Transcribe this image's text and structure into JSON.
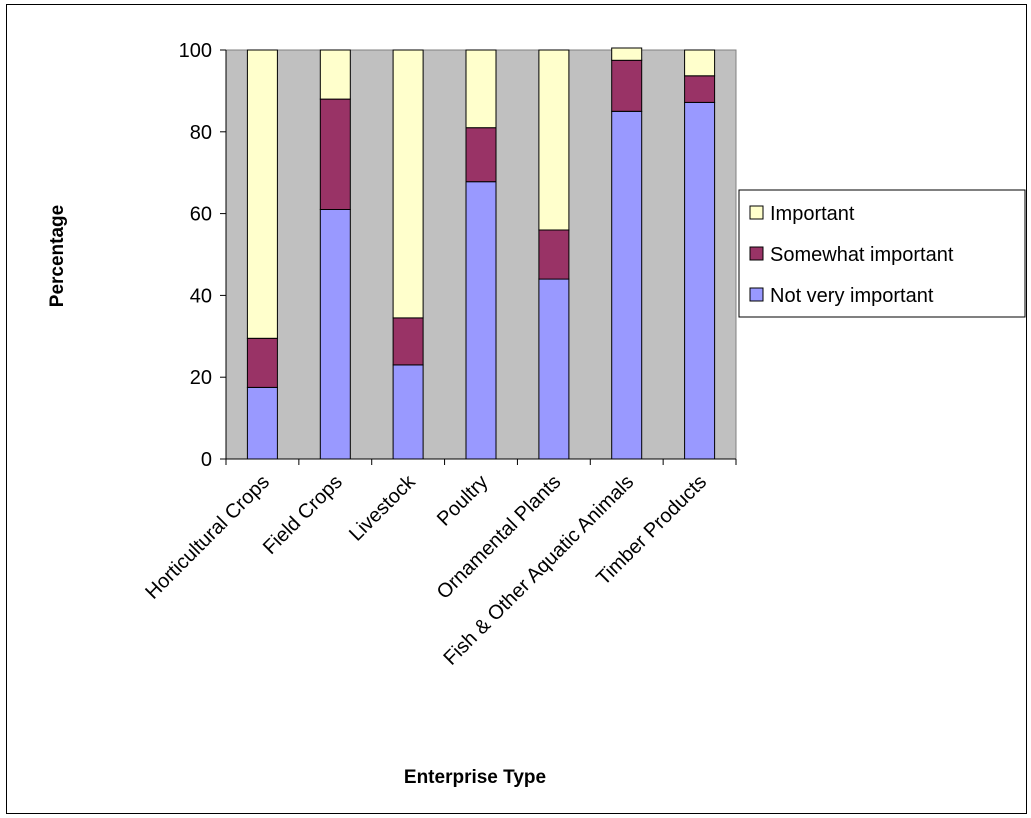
{
  "chart_data": {
    "type": "bar",
    "stacked": true,
    "categories": [
      "Horticultural Crops",
      "Field Crops",
      "Livestock",
      "Poultry",
      "Ornamental Plants",
      "Fish & Other Aquatic Animals",
      "Timber Products"
    ],
    "series": [
      {
        "name": "Not very important",
        "color": "#9999FF",
        "values": [
          17.5,
          61,
          23,
          67.8,
          44,
          85,
          87.2
        ]
      },
      {
        "name": "Somewhat important",
        "color": "#993366",
        "values": [
          12,
          27,
          11.5,
          13.2,
          12,
          12.5,
          6.5
        ]
      },
      {
        "name": "Important",
        "color": "#FFFFCC",
        "values": [
          70.5,
          12,
          65.5,
          19,
          44,
          3,
          6.3
        ]
      }
    ],
    "legend_order": [
      "Important",
      "Somewhat important",
      "Not very important"
    ],
    "title": "",
    "xlabel": "Enterprise Type",
    "ylabel": "Percentage",
    "ylim": [
      0,
      100
    ],
    "yticks": [
      0,
      20,
      40,
      60,
      80,
      100
    ],
    "plot_background": "#C0C0C0",
    "grid": false,
    "legend_position": "right"
  }
}
